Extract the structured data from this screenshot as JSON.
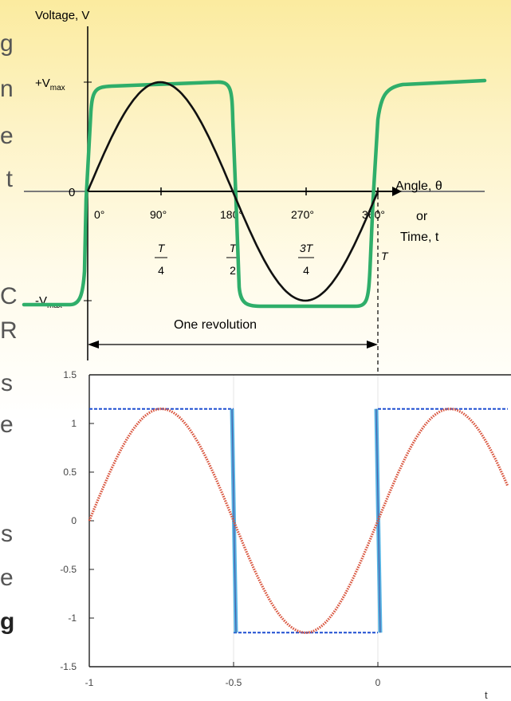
{
  "slide_text": {
    "letters": [
      "g",
      "n",
      "e",
      "t",
      "C",
      "R",
      "s",
      "e",
      "s",
      "e",
      "g"
    ],
    "bold_letters": [
      10
    ]
  },
  "top_diagram": {
    "y_axis_label": "Voltage, V",
    "vmax_label": "+V",
    "vmax_sub": "max",
    "neg_vmax_label": "-V",
    "neg_vmax_sub": "max",
    "zero_label": "0",
    "x_axis_label": "Angle, θ",
    "or_label": "or",
    "time_label": "Time, t",
    "angle_ticks": [
      "0°",
      "90°",
      "180°",
      "270°",
      "360°"
    ],
    "fractions": [
      {
        "num": "T",
        "den": "4"
      },
      {
        "num": "T",
        "den": "2"
      },
      {
        "num": "3T",
        "den": "4"
      }
    ],
    "period_label": "T",
    "revolution_label": "One revolution",
    "colors": {
      "square_wave": "#2fae6a",
      "sine_wave": "#111111"
    }
  },
  "chart_data": {
    "type": "line",
    "x_ticks": [
      "-1",
      "-0.5",
      "0"
    ],
    "y_ticks": [
      "1.5",
      "1",
      "0.5",
      "0",
      "-0.5",
      "-1",
      "-1.5"
    ],
    "xlim": [
      -1,
      0.45
    ],
    "ylim": [
      -1.5,
      1.5
    ],
    "x_label_fragment": "t",
    "series": [
      {
        "type": "sine",
        "amplitude": 1.15,
        "period": 1,
        "phase": 0.25,
        "color": "#d9563f"
      },
      {
        "type": "square",
        "amplitude": 1.15,
        "period": 1,
        "transitions": [
          -0.5,
          0
        ],
        "color": "#3aa7e0"
      }
    ]
  }
}
